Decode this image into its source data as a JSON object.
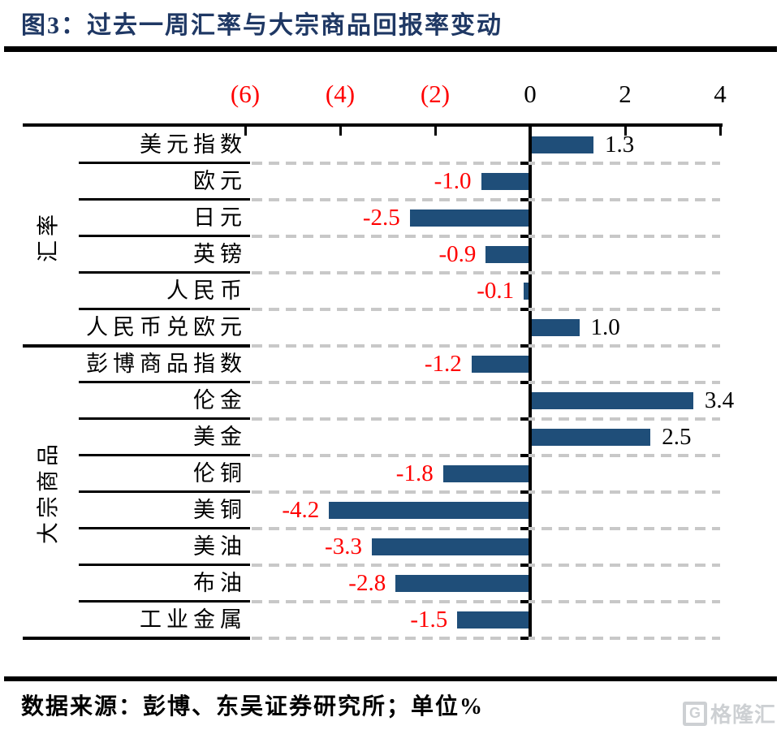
{
  "title": "图3：过去一周汇率与大宗商品回报率变动",
  "footer": {
    "source": "数据来源：彭博、东吴证券研究所；单位%",
    "logo_text": "格隆汇",
    "logo_icon": "G"
  },
  "chart_data": {
    "type": "bar",
    "orientation": "horizontal",
    "unit": "%",
    "title": "过去一周汇率与大宗商品回报率变动",
    "xlim": [
      -6,
      4
    ],
    "xticks": [
      -6,
      -4,
      -2,
      0,
      2,
      4
    ],
    "xtick_labels": [
      "(6)",
      "(4)",
      "(2)",
      "0",
      "2",
      "4"
    ],
    "grid": "dashed-horizontal",
    "groups": [
      {
        "label": "汇率",
        "items": [
          {
            "name": "美元指数",
            "value": 1.3,
            "label": "1.3"
          },
          {
            "name": "欧元",
            "value": -1.0,
            "label": "-1.0"
          },
          {
            "name": "日元",
            "value": -2.5,
            "label": "-2.5"
          },
          {
            "name": "英镑",
            "value": -0.9,
            "label": "-0.9"
          },
          {
            "name": "人民币",
            "value": -0.1,
            "label": "-0.1"
          },
          {
            "name": "人民币兑欧元",
            "value": 1.0,
            "label": "1.0"
          }
        ]
      },
      {
        "label": "大宗商品",
        "items": [
          {
            "name": "彭博商品指数",
            "value": -1.2,
            "label": "-1.2"
          },
          {
            "name": "伦金",
            "value": 3.4,
            "label": "3.4"
          },
          {
            "name": "美金",
            "value": 2.5,
            "label": "2.5"
          },
          {
            "name": "伦铜",
            "value": -1.8,
            "label": "-1.8"
          },
          {
            "name": "美铜",
            "value": -4.2,
            "label": "-4.2"
          },
          {
            "name": "美油",
            "value": -3.3,
            "label": "-3.3"
          },
          {
            "name": "布油",
            "value": -2.8,
            "label": "-2.8"
          },
          {
            "name": "工业金属",
            "value": -1.5,
            "label": "-1.5"
          }
        ]
      }
    ],
    "colors": {
      "bar": "#1F4E79",
      "negative_label": "#FF0000",
      "positive_label": "#000000",
      "title": "#1F3864",
      "gridline": "#C8C8C8",
      "axis": "#000000"
    }
  }
}
